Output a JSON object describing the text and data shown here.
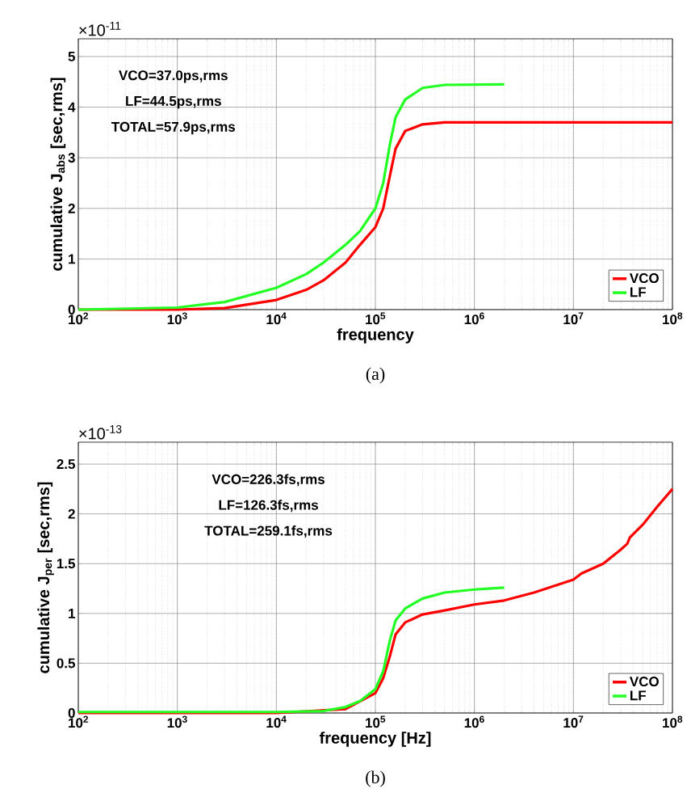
{
  "chart_data": [
    {
      "type": "line",
      "xlabel": "frequency",
      "ylabel": "cumulative J$_{abs}$ [sec,rms]",
      "log": "x",
      "grid": true,
      "legend": "bottom right",
      "marker": "none",
      "line_style": "solid",
      "xlim": [
        100,
        100000000
      ],
      "ylim": [
        0,
        5.35
      ],
      "xticks": [
        {
          "value": 100,
          "label": "10$^{2}$"
        },
        {
          "value": 1000,
          "label": "10$^{3}$"
        },
        {
          "value": 10000,
          "label": "10$^{4}$"
        },
        {
          "value": 100000,
          "label": "10$^{5}$"
        },
        {
          "value": 1000000,
          "label": "10$^{6}$"
        },
        {
          "value": 10000000,
          "label": "10$^{7}$"
        },
        {
          "value": 100000000,
          "label": "10$^{8}$"
        }
      ],
      "yticks": [
        0,
        1,
        2,
        3,
        4,
        5
      ],
      "annotations": [
        "×10$^{-11}$",
        "VCO=37.0ps,rms",
        "LF=44.5ps,rms",
        "TOTAL=57.9ps,rms",
        "(a)"
      ],
      "series": [
        {
          "name": "VCO",
          "color": "#ff0000",
          "x": [
            100,
            1000,
            3000,
            10000,
            20000,
            30000,
            50000,
            70000,
            100000,
            120000,
            140000,
            160000,
            200000,
            300000,
            500000,
            100000000
          ],
          "values": [
            0,
            0.0,
            0.03,
            0.19,
            0.39,
            0.58,
            0.93,
            1.28,
            1.63,
            2.0,
            2.64,
            3.18,
            3.53,
            3.66,
            3.7,
            3.7
          ]
        },
        {
          "name": "LF",
          "color": "#22ff22",
          "x": [
            100,
            1000,
            3000,
            10000,
            20000,
            30000,
            50000,
            70000,
            100000,
            120000,
            140000,
            160000,
            200000,
            300000,
            500000,
            2000000
          ],
          "values": [
            0,
            0.04,
            0.15,
            0.43,
            0.7,
            0.93,
            1.28,
            1.55,
            2.0,
            2.5,
            3.26,
            3.8,
            4.15,
            4.38,
            4.44,
            4.45
          ]
        }
      ]
    },
    {
      "type": "line",
      "xlabel": "frequency [Hz]",
      "ylabel": "cumulative J$_{per}$ [sec,rms]",
      "log": "x",
      "grid": true,
      "legend": "bottom right",
      "marker": "none",
      "line_style": "solid",
      "xlim": [
        100,
        100000000
      ],
      "ylim": [
        0,
        2.72
      ],
      "xticks": [
        {
          "value": 100,
          "label": "10$^{2}$"
        },
        {
          "value": 1000,
          "label": "10$^{3}$"
        },
        {
          "value": 10000,
          "label": "10$^{4}$"
        },
        {
          "value": 100000,
          "label": "10$^{5}$"
        },
        {
          "value": 1000000,
          "label": "10$^{6}$"
        },
        {
          "value": 10000000,
          "label": "10$^{7}$"
        },
        {
          "value": 100000000,
          "label": "10$^{8}$"
        }
      ],
      "yticks": [
        0,
        0.5,
        1,
        1.5,
        2,
        2.5
      ],
      "annotations": [
        "×10$^{-13}$",
        "VCO=226.3fs,rms",
        "LF=126.3fs,rms",
        "TOTAL=259.1fs,rms",
        "(b)"
      ],
      "series": [
        {
          "name": "VCO",
          "color": "#ff0000",
          "x": [
            100,
            10000,
            50000,
            100000,
            120000,
            140000,
            160000,
            200000,
            300000,
            500000,
            1000000,
            2000000,
            4000000,
            10000000,
            12000000,
            20000000,
            30000000,
            35000000,
            37000000,
            50000000,
            70000000,
            100000000
          ],
          "values": [
            0,
            0.0,
            0.04,
            0.2,
            0.35,
            0.57,
            0.79,
            0.91,
            0.99,
            1.03,
            1.09,
            1.13,
            1.21,
            1.34,
            1.4,
            1.5,
            1.64,
            1.7,
            1.76,
            1.89,
            2.07,
            2.25
          ]
        },
        {
          "name": "LF",
          "color": "#22ff22",
          "x": [
            100,
            10000,
            30000,
            50000,
            70000,
            100000,
            120000,
            140000,
            160000,
            200000,
            300000,
            500000,
            1000000,
            2000000
          ],
          "values": [
            0.01,
            0.01,
            0.02,
            0.06,
            0.12,
            0.24,
            0.42,
            0.73,
            0.93,
            1.05,
            1.15,
            1.21,
            1.24,
            1.26
          ]
        }
      ]
    }
  ]
}
